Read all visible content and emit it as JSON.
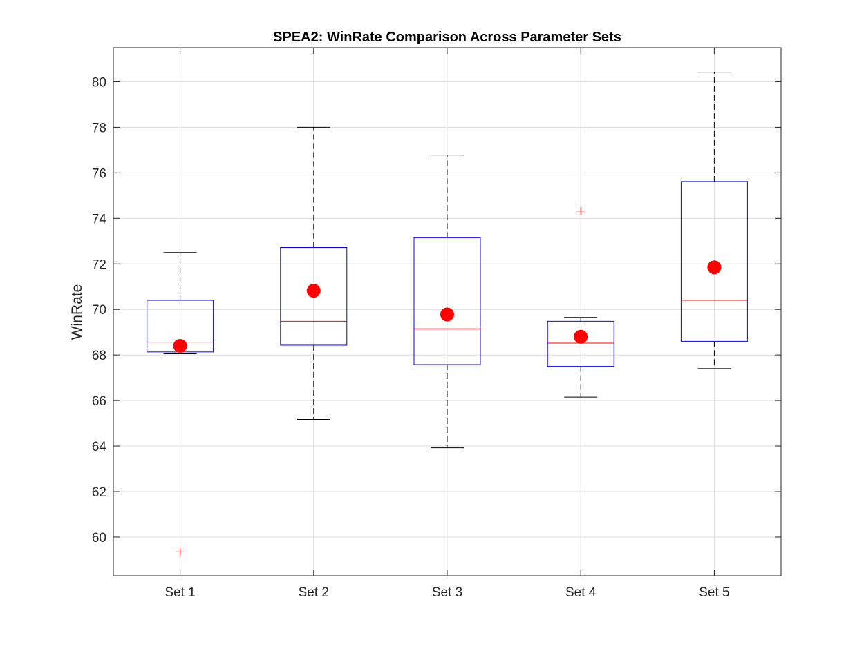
{
  "chart_data": {
    "type": "box",
    "title": "SPEA2: WinRate Comparison Across Parameter Sets",
    "xlabel": "",
    "ylabel": "WinRate",
    "categories": [
      "Set 1",
      "Set 2",
      "Set 3",
      "Set 4",
      "Set 5"
    ],
    "ylim": [
      58.3,
      81.5
    ],
    "yticks": [
      60,
      62,
      64,
      66,
      68,
      70,
      72,
      74,
      76,
      78,
      80
    ],
    "grid": true,
    "boxes": [
      {
        "category": "Set 1",
        "whisker_low": 68.05,
        "q1": 68.13,
        "median": 68.56,
        "q3": 70.4,
        "whisker_high": 72.5,
        "mean": 68.4,
        "outliers": [
          59.35
        ]
      },
      {
        "category": "Set 2",
        "whisker_low": 65.17,
        "q1": 68.43,
        "median": 69.48,
        "q3": 72.72,
        "whisker_high": 78.0,
        "mean": 70.82,
        "outliers": []
      },
      {
        "category": "Set 3",
        "whisker_low": 63.92,
        "q1": 67.58,
        "median": 69.15,
        "q3": 73.15,
        "whisker_high": 76.78,
        "mean": 69.78,
        "outliers": []
      },
      {
        "category": "Set 4",
        "whisker_low": 66.15,
        "q1": 67.5,
        "median": 68.52,
        "q3": 69.48,
        "whisker_high": 69.65,
        "mean": 68.8,
        "outliers": [
          74.32
        ]
      },
      {
        "category": "Set 5",
        "whisker_low": 67.4,
        "q1": 68.6,
        "median": 70.4,
        "q3": 75.62,
        "whisker_high": 80.42,
        "mean": 71.85,
        "outliers": []
      }
    ],
    "colors": {
      "box": "#0000ff",
      "median": "#ff0000",
      "whisker": "#000000",
      "outlier": "#ff0000",
      "mean": "#ff0000",
      "grid": "#dcdcdc",
      "axis": "#262626"
    }
  }
}
